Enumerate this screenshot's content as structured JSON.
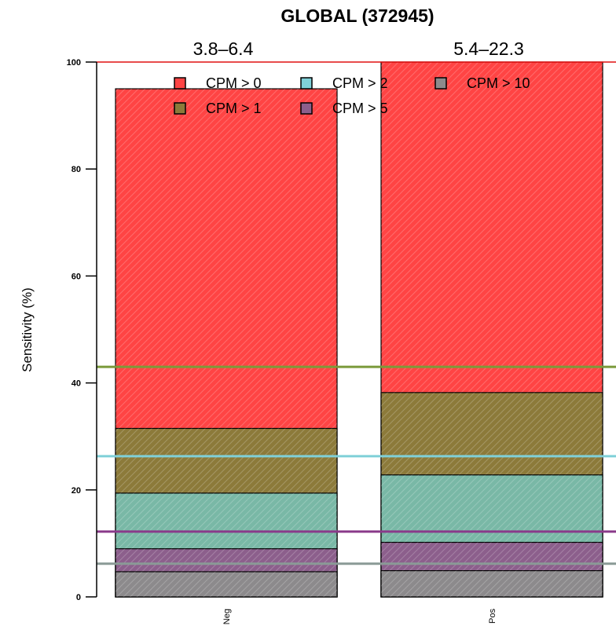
{
  "chart_data": {
    "type": "bar",
    "stacked": false,
    "overlapping_bars": true,
    "title": "GLOBAL (372945)",
    "ylabel": "Sensitivity (%)",
    "xlabel": "",
    "ylim": [
      0,
      100
    ],
    "yticks": [
      "0",
      "20",
      "40",
      "60",
      "80",
      "100"
    ],
    "categories": [
      "Neg",
      "Pos"
    ],
    "bar_labels": [
      "3.8–6.4",
      "5.4–22.3"
    ],
    "series": [
      {
        "name": "CPM > 0",
        "color": "#ff4444",
        "values": [
          95.0,
          100.0
        ]
      },
      {
        "name": "CPM > 1",
        "color": "#8c7a3a",
        "values": [
          31.5,
          38.2
        ]
      },
      {
        "name": "CPM > 2",
        "color": "#79b8a6",
        "values": [
          19.4,
          22.8
        ]
      },
      {
        "name": "CPM > 5",
        "color": "#8c5f8c",
        "values": [
          9.0,
          10.2
        ]
      },
      {
        "name": "CPM > 10",
        "color": "#8c8a8c",
        "values": [
          4.7,
          4.9
        ]
      }
    ],
    "reference_lines": [
      {
        "value": 100,
        "color": "#e01010"
      },
      {
        "value": 43.0,
        "color": "#7a9a3a"
      },
      {
        "value": 26.3,
        "color": "#7fd0d8"
      },
      {
        "value": 12.2,
        "color": "#8a3a8a"
      },
      {
        "value": 6.2,
        "color": "#8a9a96"
      }
    ],
    "legend": {
      "placement": "top-inside",
      "order": [
        "CPM > 0",
        "CPM > 2",
        "CPM > 10",
        "CPM > 1",
        "CPM > 5"
      ],
      "swatch_colors": [
        "#ff4444",
        "#7fd0d8",
        "#8c8a8c",
        "#8c7a3a",
        "#8c5f8c"
      ]
    },
    "grid": false
  }
}
